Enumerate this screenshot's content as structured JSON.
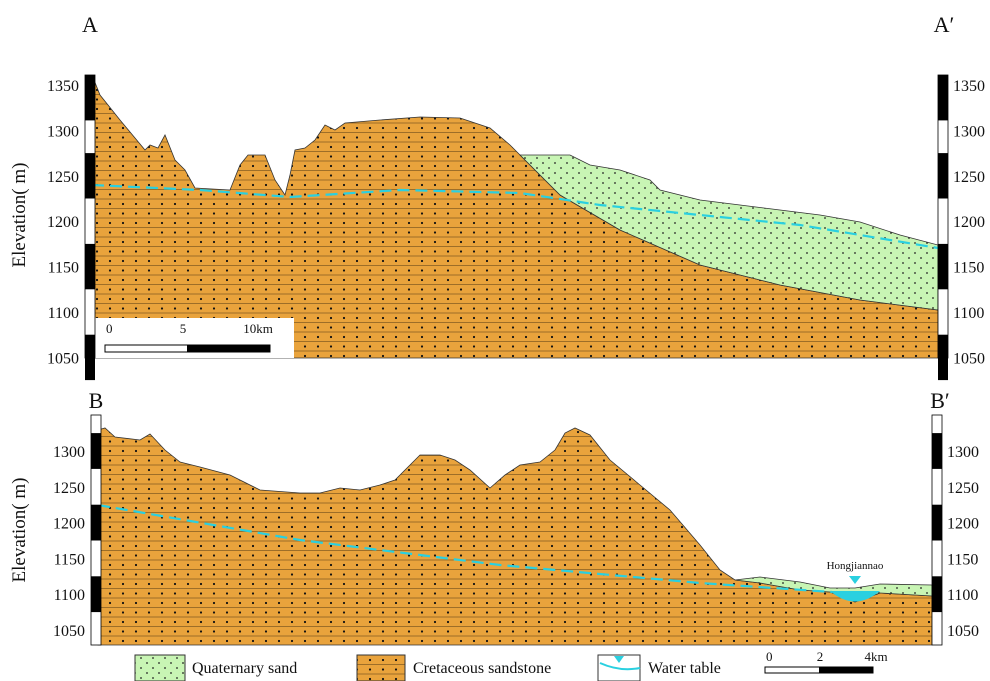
{
  "sections": [
    {
      "label": "A",
      "label_right": "A′",
      "axis_label": "Elevation( m)",
      "ticks": [
        1350,
        1300,
        1250,
        1200,
        1150,
        1100,
        1050
      ],
      "scale": [
        "0",
        "5",
        "10km"
      ]
    },
    {
      "label": "B",
      "label_right": "B′",
      "axis_label": "Elevation( m)",
      "ticks": [
        1300,
        1250,
        1200,
        1150,
        1100,
        1050
      ],
      "scale": [
        "0",
        "2",
        "4km"
      ],
      "place": "Hongjiannao"
    }
  ],
  "legend": [
    "Quaternary sand",
    "Cretaceous sandstone",
    "Water table"
  ]
}
